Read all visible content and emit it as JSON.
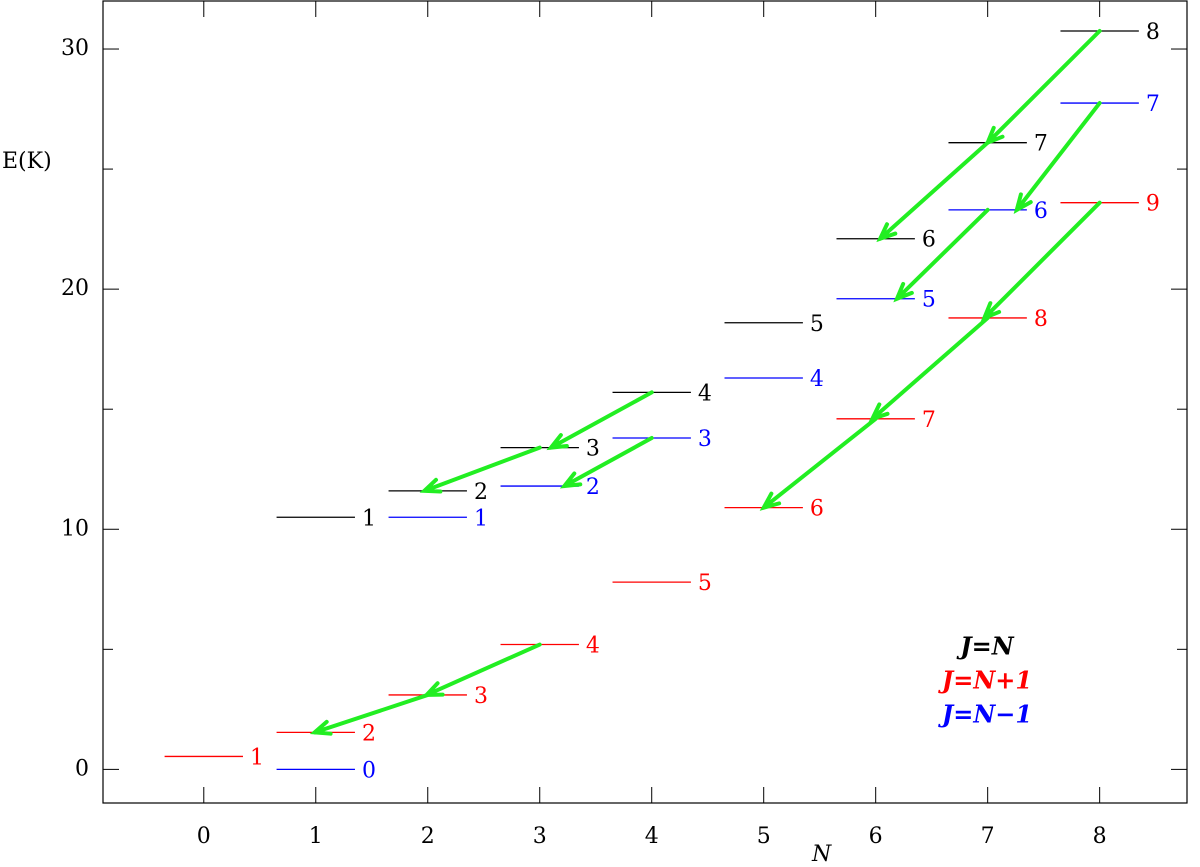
{
  "chart_data": {
    "type": "levels",
    "y_label": "E(K)",
    "x_label": "N",
    "xlim": [
      -0.9,
      8.78
    ],
    "ylim": [
      -1.4,
      32
    ],
    "xticks": [
      0,
      1,
      2,
      3,
      4,
      5,
      6,
      7,
      8
    ],
    "yticks": [
      0,
      10,
      20,
      30
    ],
    "yminor_ticks": [
      5,
      15,
      25
    ],
    "series": [
      {
        "name": "J=N",
        "color": "#000000",
        "x": [
          1,
          2,
          3,
          4,
          5,
          6,
          7,
          8
        ],
        "values": [
          10.5,
          11.6,
          13.4,
          15.7,
          18.6,
          22.1,
          26.1,
          30.75
        ],
        "labels": [
          1,
          2,
          3,
          4,
          5,
          6,
          7,
          8
        ]
      },
      {
        "name": "J=N+1",
        "color": "#ff0000",
        "x": [
          0,
          1,
          2,
          3,
          4,
          5,
          6,
          7,
          8
        ],
        "values": [
          0.54,
          1.54,
          3.1,
          5.2,
          7.8,
          10.9,
          14.6,
          18.8,
          23.6
        ],
        "labels": [
          1,
          2,
          3,
          4,
          5,
          6,
          7,
          8,
          9
        ]
      },
      {
        "name": "J=N−1",
        "color": "#0000ff",
        "x": [
          1,
          2,
          3,
          4,
          5,
          6,
          7,
          8
        ],
        "values": [
          0,
          10.5,
          11.8,
          13.8,
          16.3,
          19.6,
          23.3,
          27.75
        ],
        "labels": [
          0,
          1,
          2,
          3,
          4,
          5,
          6,
          7
        ]
      }
    ],
    "arrow_color": "#22ee22",
    "arrows": [
      {
        "from": [
          8,
          30.75
        ],
        "to": [
          7,
          26.1
        ]
      },
      {
        "from": [
          7,
          26.1
        ],
        "to": [
          6.04,
          22.1
        ]
      },
      {
        "from": [
          8,
          27.75
        ],
        "to": [
          7.26,
          23.3
        ]
      },
      {
        "from": [
          7,
          23.3
        ],
        "to": [
          6.19,
          19.6
        ]
      },
      {
        "from": [
          8,
          23.6
        ],
        "to": [
          6.97,
          18.8
        ]
      },
      {
        "from": [
          7,
          18.8
        ],
        "to": [
          5.97,
          14.6
        ]
      },
      {
        "from": [
          6,
          14.6
        ],
        "to": [
          5.0,
          10.9
        ]
      },
      {
        "from": [
          4,
          15.7
        ],
        "to": [
          3.1,
          13.4
        ]
      },
      {
        "from": [
          3,
          13.4
        ],
        "to": [
          1.97,
          11.6
        ]
      },
      {
        "from": [
          4,
          13.8
        ],
        "to": [
          3.22,
          11.8
        ]
      },
      {
        "from": [
          3,
          5.2
        ],
        "to": [
          1.99,
          3.1
        ]
      },
      {
        "from": [
          2,
          3.1
        ],
        "to": [
          0.99,
          1.54
        ]
      }
    ]
  }
}
